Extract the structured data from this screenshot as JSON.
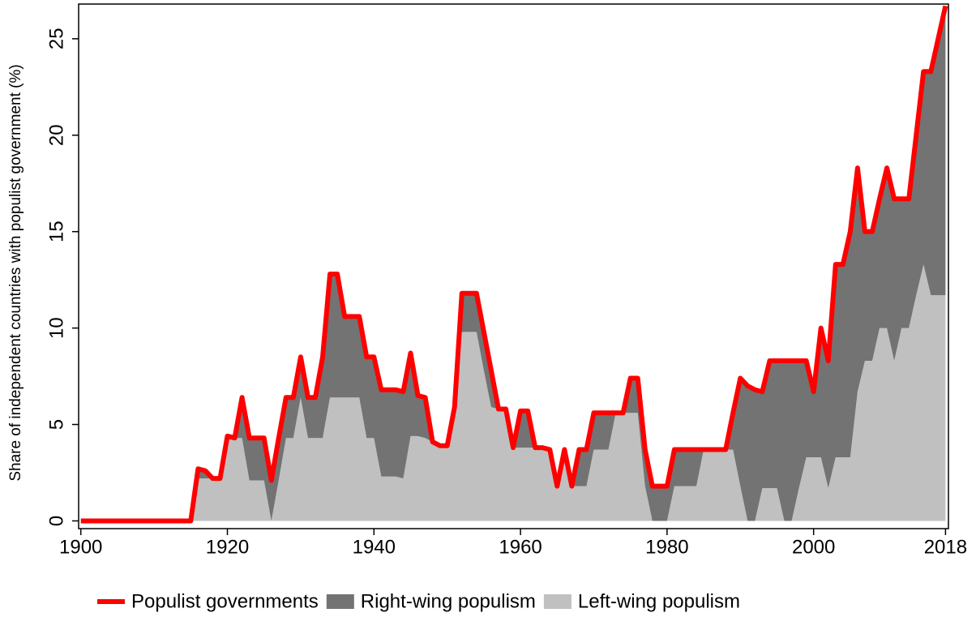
{
  "chart_data": {
    "type": "stacked_area_line",
    "y_label": "Share of independent countries with populist government (%)",
    "x": [
      1900,
      1901,
      1902,
      1903,
      1904,
      1905,
      1906,
      1907,
      1908,
      1909,
      1910,
      1911,
      1912,
      1913,
      1914,
      1915,
      1916,
      1917,
      1918,
      1919,
      1920,
      1921,
      1922,
      1923,
      1924,
      1925,
      1926,
      1927,
      1928,
      1929,
      1930,
      1931,
      1932,
      1933,
      1934,
      1935,
      1936,
      1937,
      1938,
      1939,
      1940,
      1941,
      1942,
      1943,
      1944,
      1945,
      1946,
      1947,
      1948,
      1949,
      1950,
      1951,
      1952,
      1953,
      1954,
      1955,
      1956,
      1957,
      1958,
      1959,
      1960,
      1961,
      1962,
      1963,
      1964,
      1965,
      1966,
      1967,
      1968,
      1969,
      1970,
      1971,
      1972,
      1973,
      1974,
      1975,
      1976,
      1977,
      1978,
      1979,
      1980,
      1981,
      1982,
      1983,
      1984,
      1985,
      1986,
      1987,
      1988,
      1989,
      1990,
      1991,
      1992,
      1993,
      1994,
      1995,
      1996,
      1997,
      1998,
      1999,
      2000,
      2001,
      2002,
      2003,
      2004,
      2005,
      2006,
      2007,
      2008,
      2009,
      2010,
      2011,
      2012,
      2013,
      2014,
      2015,
      2016,
      2017,
      2018
    ],
    "series": [
      {
        "name": "Populist governments",
        "color": "#ff0000",
        "kind": "line",
        "values": [
          0,
          0,
          0,
          0,
          0,
          0,
          0,
          0,
          0,
          0,
          0,
          0,
          0,
          0,
          0,
          0,
          2.7,
          2.6,
          2.2,
          2.2,
          4.4,
          4.3,
          6.4,
          4.3,
          4.3,
          4.3,
          2.1,
          4.3,
          6.4,
          6.4,
          8.5,
          6.4,
          6.4,
          8.5,
          12.8,
          12.8,
          10.6,
          10.6,
          10.6,
          8.5,
          8.5,
          6.8,
          6.8,
          6.8,
          6.7,
          8.7,
          6.5,
          6.4,
          4.1,
          3.9,
          3.9,
          5.9,
          11.8,
          11.8,
          11.8,
          9.8,
          7.8,
          5.8,
          5.8,
          3.8,
          5.7,
          5.7,
          3.8,
          3.8,
          3.7,
          1.8,
          3.7,
          1.8,
          3.7,
          3.7,
          5.6,
          5.6,
          5.6,
          5.6,
          5.6,
          7.4,
          7.4,
          3.7,
          1.8,
          1.8,
          1.8,
          3.7,
          3.7,
          3.7,
          3.7,
          3.7,
          3.7,
          3.7,
          3.7,
          5.6,
          7.4,
          7.0,
          6.8,
          6.7,
          8.3,
          8.3,
          8.3,
          8.3,
          8.3,
          8.3,
          6.7,
          10.0,
          8.3,
          13.3,
          13.3,
          15.0,
          18.3,
          15.0,
          15.0,
          16.7,
          18.3,
          16.7,
          16.7,
          16.7,
          20.0,
          23.3,
          23.3,
          25.0,
          26.7
        ]
      },
      {
        "name": "Right-wing populism",
        "color": "#737373",
        "kind": "area",
        "values": [
          0,
          0,
          0,
          0,
          0,
          0,
          0,
          0,
          0,
          0,
          0,
          0,
          0,
          0,
          0,
          0,
          0.5,
          0.4,
          0,
          0,
          0,
          0,
          2.1,
          2.2,
          2.2,
          2.2,
          2.1,
          2.2,
          2.1,
          2.1,
          2.1,
          2.1,
          2.1,
          4.2,
          6.4,
          6.4,
          4.2,
          4.2,
          4.2,
          4.2,
          4.2,
          4.5,
          4.5,
          4.5,
          4.5,
          4.3,
          2.1,
          2.1,
          0,
          0,
          0,
          0,
          2.0,
          2.0,
          2.0,
          2.0,
          1.9,
          0,
          0,
          0,
          1.9,
          1.9,
          0,
          0,
          0,
          0,
          0,
          0,
          1.9,
          1.9,
          1.9,
          1.9,
          1.9,
          0,
          0,
          1.8,
          1.8,
          1.9,
          1.8,
          1.8,
          1.8,
          1.9,
          1.9,
          1.9,
          1.9,
          0,
          0,
          0,
          0,
          1.9,
          5.6,
          7.0,
          6.8,
          5.0,
          6.6,
          6.6,
          8.3,
          8.3,
          6.6,
          5.0,
          3.4,
          6.7,
          6.6,
          10.0,
          10.0,
          11.7,
          11.6,
          6.7,
          6.7,
          6.7,
          8.3,
          8.4,
          6.7,
          6.7,
          8.3,
          10.0,
          11.6,
          13.3,
          15.0
        ]
      },
      {
        "name": "Left-wing populism",
        "color": "#c0c0c0",
        "kind": "area",
        "values": [
          0,
          0,
          0,
          0,
          0,
          0,
          0,
          0,
          0,
          0,
          0,
          0,
          0,
          0,
          0,
          0,
          2.2,
          2.2,
          2.2,
          2.2,
          4.4,
          4.3,
          4.3,
          2.1,
          2.1,
          2.1,
          0,
          2.1,
          4.3,
          4.3,
          6.4,
          4.3,
          4.3,
          4.3,
          6.4,
          6.4,
          6.4,
          6.4,
          6.4,
          4.3,
          4.3,
          2.3,
          2.3,
          2.3,
          2.2,
          4.4,
          4.4,
          4.3,
          4.1,
          3.9,
          3.9,
          5.9,
          9.8,
          9.8,
          9.8,
          7.8,
          5.9,
          5.8,
          5.8,
          3.8,
          3.8,
          3.8,
          3.8,
          3.8,
          3.7,
          1.8,
          3.7,
          1.8,
          1.8,
          1.8,
          3.7,
          3.7,
          3.7,
          5.6,
          5.6,
          5.6,
          5.6,
          1.8,
          0,
          0,
          0,
          1.8,
          1.8,
          1.8,
          1.8,
          3.7,
          3.7,
          3.7,
          3.7,
          3.7,
          1.8,
          0,
          0,
          1.7,
          1.7,
          1.7,
          0,
          0,
          1.7,
          3.3,
          3.3,
          3.3,
          1.7,
          3.3,
          3.3,
          3.3,
          6.7,
          8.3,
          8.3,
          10,
          10,
          8.3,
          10,
          10,
          11.7,
          13.3,
          11.7,
          11.7,
          11.7
        ]
      }
    ],
    "xlim": [
      1899.7,
      2018.4
    ],
    "ylim": [
      -0.4,
      26.8
    ],
    "xticks": [
      1900,
      1920,
      1940,
      1960,
      1980,
      2000,
      2018
    ],
    "yticks": [
      0,
      5,
      10,
      15,
      20,
      25
    ],
    "legend": "bottom"
  }
}
